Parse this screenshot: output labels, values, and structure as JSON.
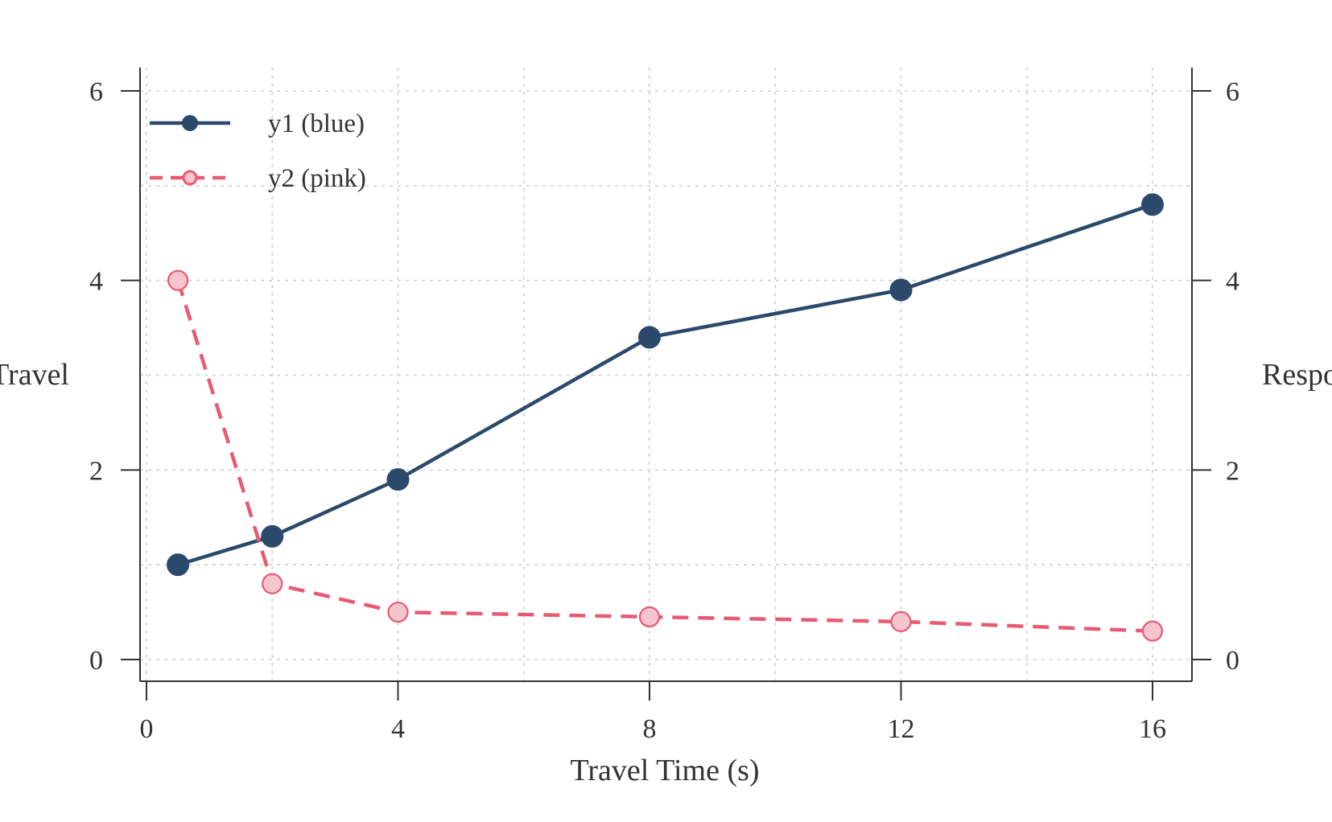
{
  "chart_data": {
    "type": "line",
    "title": "",
    "xlabel": "Travel Time (s)",
    "ylabel_left": "Travel",
    "ylabel_right": "Respo",
    "xlim": [
      -0.3,
      17.2
    ],
    "ylim": [
      -0.25,
      6.25
    ],
    "xticks": [
      0,
      4,
      8,
      12,
      16
    ],
    "xticks_minor_grid": [
      2,
      6,
      10,
      14
    ],
    "yticks": [
      0,
      2,
      4,
      6
    ],
    "yticks_minor_grid": [
      1,
      3,
      5
    ],
    "grid": true,
    "legend_position": "top-left",
    "series": [
      {
        "name": "y1 (blue)",
        "color": "#2b4a6b",
        "style": "solid",
        "marker": "filled-circle",
        "x": [
          0.5,
          2,
          4,
          8,
          12,
          16
        ],
        "y": [
          1.0,
          1.3,
          1.9,
          3.4,
          3.9,
          4.8
        ]
      },
      {
        "name": "y2 (pink)",
        "color": "#e85a72",
        "fill": "#f6c4cd",
        "style": "dashed",
        "marker": "open-circle",
        "x": [
          0.5,
          2,
          4,
          8,
          12,
          16
        ],
        "y": [
          4.0,
          0.8,
          0.5,
          0.45,
          0.4,
          0.3
        ]
      }
    ]
  }
}
